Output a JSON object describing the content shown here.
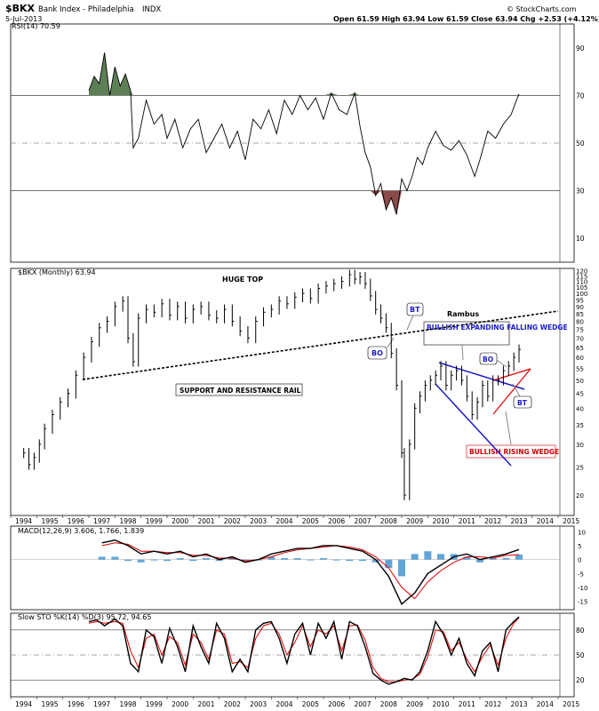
{
  "header": {
    "symbol": "$BKX",
    "name": "Bank Index - Philadelphia",
    "exchange": "INDX",
    "date": "5-Jul-2013",
    "ohlc": "Open 61.59   High 63.94   Low 61.59   Close 63.94   Chg +2.53 (+4.12%)",
    "copyright": "© StockCharts.com"
  },
  "chart_data": [
    {
      "type": "line",
      "title": "RSI(14) 70.59",
      "ylim": [
        0,
        100
      ],
      "y_ticks": [
        10,
        30,
        50,
        70,
        90
      ],
      "ref_lines": [
        30,
        50,
        70
      ],
      "shading": {
        "overbought_color": "#5e7f55",
        "oversold_color": "#8b4a4a"
      },
      "series": [
        {
          "x": [
            1997.0,
            1997.2,
            1997.4,
            1997.6,
            1997.8,
            1998.0,
            1998.2,
            1998.4,
            1998.6,
            1998.7,
            1998.9,
            1999.2,
            1999.5,
            1999.8,
            2000.0,
            2000.3,
            2000.6,
            2000.9,
            2001.2,
            2001.5,
            2001.8,
            2002.1,
            2002.4,
            2002.7,
            2003.0,
            2003.3,
            2003.6,
            2003.9,
            2004.2,
            2004.5,
            2004.8,
            2005.1,
            2005.4,
            2005.7,
            2006.0,
            2006.3,
            2006.6,
            2006.9,
            2007.2,
            2007.4,
            2007.6,
            2007.8,
            2008.0,
            2008.2,
            2008.4,
            2008.6,
            2008.8,
            2009.0,
            2009.2,
            2009.4,
            2009.6,
            2009.8,
            2010.0,
            2010.3,
            2010.6,
            2010.9,
            2011.2,
            2011.5,
            2011.8,
            2012.0,
            2012.3,
            2012.6,
            2012.9,
            2013.2,
            2013.4,
            2013.5
          ],
          "values": [
            72,
            78,
            75,
            88,
            70,
            82,
            74,
            79,
            72,
            48,
            52,
            68,
            58,
            62,
            52,
            60,
            48,
            56,
            60,
            46,
            52,
            58,
            48,
            55,
            43,
            60,
            56,
            64,
            54,
            68,
            62,
            70,
            64,
            69,
            60,
            71,
            64,
            62,
            71,
            57,
            46,
            40,
            28,
            33,
            22,
            27,
            20,
            35,
            30,
            36,
            44,
            41,
            48,
            55,
            49,
            47,
            51,
            45,
            36,
            43,
            55,
            52,
            58,
            62,
            68,
            70.59
          ]
        }
      ]
    },
    {
      "type": "line",
      "title": "$BKX (Monthly) 63.94",
      "ylabel": "",
      "x_ticks": [
        "1994",
        "1995",
        "1996",
        "1997",
        "1998",
        "1999",
        "2000",
        "2001",
        "2002",
        "2003",
        "2004",
        "2005",
        "2006",
        "2007",
        "2008",
        "2009",
        "2010",
        "2011",
        "2012",
        "2013",
        "2014",
        "2015"
      ],
      "y_ticks": [
        20,
        25,
        30,
        35,
        40,
        45,
        50,
        55,
        60,
        65,
        70,
        75,
        80,
        85,
        90,
        95,
        100,
        105,
        110,
        115,
        120
      ],
      "y_scale": "log",
      "ylim": [
        17,
        122
      ],
      "series": [
        {
          "name": "",
          "x": [
            1994.5,
            1994.7,
            1994.9,
            1995.1,
            1995.3,
            1995.6,
            1995.9,
            1996.2,
            1996.5,
            1996.8,
            1997.1,
            1997.4,
            1997.7,
            1998.0,
            1998.3,
            1998.5,
            1998.7,
            1998.9,
            1999.2,
            1999.5,
            1999.8,
            2000.1,
            2000.4,
            2000.7,
            2001.0,
            2001.3,
            2001.6,
            2001.9,
            2002.2,
            2002.5,
            2002.8,
            2003.1,
            2003.4,
            2003.7,
            2004.0,
            2004.3,
            2004.6,
            2004.9,
            2005.2,
            2005.5,
            2005.8,
            2006.1,
            2006.4,
            2006.7,
            2007.0,
            2007.2,
            2007.4,
            2007.6,
            2007.8,
            2008.0,
            2008.2,
            2008.4,
            2008.6,
            2008.8,
            2009.0,
            2009.1,
            2009.3,
            2009.5,
            2009.7,
            2009.9,
            2010.1,
            2010.3,
            2010.5,
            2010.7,
            2010.9,
            2011.1,
            2011.3,
            2011.5,
            2011.7,
            2011.9,
            2012.1,
            2012.3,
            2012.5,
            2012.7,
            2012.9,
            2013.1,
            2013.3,
            2013.5
          ],
          "values": [
            28,
            25.5,
            27,
            30,
            34,
            38,
            42,
            45,
            52,
            60,
            68,
            76,
            80,
            90,
            94,
            70,
            58,
            82,
            88,
            86,
            92,
            84,
            90,
            82,
            88,
            90,
            84,
            82,
            88,
            80,
            74,
            70,
            80,
            86,
            88,
            94,
            92,
            97,
            100,
            96,
            104,
            106,
            108,
            110,
            116,
            112,
            114,
            108,
            98,
            88,
            82,
            76,
            62,
            48,
            28,
            20,
            30,
            40,
            44,
            48,
            50,
            52,
            56,
            48,
            52,
            54,
            50,
            44,
            38,
            42,
            48,
            44,
            50,
            50,
            54,
            56,
            60,
            63.94
          ]
        }
      ],
      "annotations": [
        {
          "label": "HUGE TOP"
        },
        {
          "label": "SUPPORT AND RESISTANCE RAIL"
        },
        {
          "label": "Rambus"
        },
        {
          "label": "BULLISH EXPANDING FALLING WEDGE"
        },
        {
          "label": "BULLISH RISING WEDGE"
        },
        {
          "label": "BO"
        },
        {
          "label": "BT"
        },
        {
          "label": "BO"
        },
        {
          "label": "BT"
        }
      ]
    },
    {
      "type": "line",
      "title": "MACD(12,26,9) 3.606, 1.766, 1.839",
      "y_ticks": [
        10,
        5,
        0,
        -5,
        -10,
        -15
      ],
      "ylim": [
        -18,
        12
      ],
      "colors": {
        "macd": "#000000",
        "signal": "#e00000",
        "histogram": "#3a8fcf"
      },
      "series": [
        {
          "name": "MACD",
          "x": [
            1997.5,
            1998.0,
            1998.5,
            1999.0,
            1999.5,
            2000.0,
            2000.5,
            2001.0,
            2001.5,
            2002.0,
            2002.5,
            2003.0,
            2003.5,
            2004.0,
            2004.5,
            2005.0,
            2005.5,
            2006.0,
            2006.5,
            2007.0,
            2007.5,
            2008.0,
            2008.5,
            2009.0,
            2009.5,
            2010.0,
            2010.5,
            2011.0,
            2011.5,
            2012.0,
            2012.5,
            2013.0,
            2013.5
          ],
          "values": [
            6,
            7,
            5,
            2,
            3,
            2,
            3,
            1,
            2,
            0,
            1,
            -1,
            0,
            2,
            3,
            4,
            4,
            5,
            5,
            4,
            3,
            0,
            -6,
            -16,
            -12,
            -5,
            -2,
            1,
            2,
            0,
            1,
            2,
            3.606
          ]
        },
        {
          "name": "Signal",
          "x": [
            1997.5,
            1998.0,
            1998.5,
            1999.0,
            1999.5,
            2000.0,
            2000.5,
            2001.0,
            2001.5,
            2002.0,
            2002.5,
            2003.0,
            2003.5,
            2004.0,
            2004.5,
            2005.0,
            2005.5,
            2006.0,
            2006.5,
            2007.0,
            2007.5,
            2008.0,
            2008.5,
            2009.0,
            2009.5,
            2010.0,
            2010.5,
            2011.0,
            2011.5,
            2012.0,
            2012.5,
            2013.0,
            2013.5
          ],
          "values": [
            5,
            6,
            5.5,
            3,
            3,
            2.5,
            2.5,
            1.5,
            1.5,
            0.5,
            0.5,
            -0.5,
            0,
            1,
            2.5,
            3.5,
            4,
            4.5,
            5,
            4.5,
            3.5,
            1,
            -3,
            -10,
            -14,
            -8,
            -4,
            -1,
            1,
            1,
            0.5,
            1.5,
            1.766
          ]
        },
        {
          "name": "Histogram",
          "values": [
            1,
            1,
            -0.5,
            -1,
            0,
            -0.5,
            0.5,
            -0.5,
            0.5,
            -0.5,
            0.5,
            -0.5,
            0,
            1,
            0.5,
            0.5,
            0,
            0.5,
            0,
            -0.5,
            -0.5,
            -1,
            -3,
            -6,
            2,
            3,
            2,
            2,
            1,
            -1,
            0.5,
            0.5,
            1.839
          ]
        }
      ]
    },
    {
      "type": "line",
      "title": "Slow STO %K(14) %D(3) 95.72, 94.65",
      "y_ticks": [
        80,
        50,
        20
      ],
      "ylim": [
        0,
        100
      ],
      "ref_lines": [
        20,
        50,
        80
      ],
      "x_ticks": [
        "1994",
        "1995",
        "1996",
        "1997",
        "1998",
        "1999",
        "2000",
        "2001",
        "2002",
        "2003",
        "2004",
        "2005",
        "2006",
        "2007",
        "2008",
        "2009",
        "2010",
        "2011",
        "2012",
        "2013",
        "2014",
        "2015"
      ],
      "series": [
        {
          "name": "%K",
          "x": [
            1997.0,
            1997.3,
            1997.6,
            1998.0,
            1998.3,
            1998.6,
            1998.9,
            1999.2,
            1999.5,
            1999.8,
            2000.1,
            2000.4,
            2000.7,
            2001.0,
            2001.3,
            2001.6,
            2001.9,
            2002.2,
            2002.5,
            2002.8,
            2003.1,
            2003.4,
            2003.7,
            2004.0,
            2004.3,
            2004.6,
            2004.9,
            2005.2,
            2005.5,
            2005.8,
            2006.1,
            2006.4,
            2006.7,
            2007.0,
            2007.3,
            2007.6,
            2007.9,
            2008.2,
            2008.5,
            2008.8,
            2009.1,
            2009.4,
            2009.7,
            2010.0,
            2010.3,
            2010.6,
            2010.9,
            2011.2,
            2011.5,
            2011.8,
            2012.1,
            2012.4,
            2012.7,
            2013.0,
            2013.3,
            2013.5
          ],
          "values": [
            90,
            92,
            85,
            93,
            85,
            40,
            30,
            80,
            72,
            40,
            82,
            60,
            30,
            85,
            60,
            40,
            88,
            70,
            30,
            45,
            30,
            80,
            88,
            90,
            70,
            40,
            75,
            88,
            50,
            88,
            70,
            90,
            45,
            90,
            85,
            60,
            28,
            20,
            15,
            18,
            22,
            20,
            30,
            55,
            90,
            75,
            50,
            70,
            40,
            25,
            55,
            65,
            30,
            80,
            90,
            95.72
          ]
        },
        {
          "name": "%D",
          "x": [
            1997.0,
            1997.3,
            1997.6,
            1998.0,
            1998.3,
            1998.6,
            1998.9,
            1999.2,
            1999.5,
            1999.8,
            2000.1,
            2000.4,
            2000.7,
            2001.0,
            2001.3,
            2001.6,
            2001.9,
            2002.2,
            2002.5,
            2002.8,
            2003.1,
            2003.4,
            2003.7,
            2004.0,
            2004.3,
            2004.6,
            2004.9,
            2005.2,
            2005.5,
            2005.8,
            2006.1,
            2006.4,
            2006.7,
            2007.0,
            2007.3,
            2007.6,
            2007.9,
            2008.2,
            2008.5,
            2008.8,
            2009.1,
            2009.4,
            2009.7,
            2010.0,
            2010.3,
            2010.6,
            2010.9,
            2011.2,
            2011.5,
            2011.8,
            2012.1,
            2012.4,
            2012.7,
            2013.0,
            2013.3,
            2013.5
          ],
          "values": [
            88,
            90,
            88,
            90,
            88,
            55,
            35,
            70,
            75,
            50,
            72,
            65,
            38,
            75,
            65,
            45,
            80,
            75,
            40,
            42,
            35,
            70,
            85,
            88,
            75,
            50,
            65,
            85,
            60,
            80,
            75,
            85,
            55,
            85,
            86,
            68,
            35,
            22,
            18,
            18,
            20,
            21,
            27,
            48,
            80,
            78,
            55,
            65,
            45,
            30,
            48,
            62,
            38,
            70,
            88,
            94.65
          ]
        }
      ]
    }
  ]
}
